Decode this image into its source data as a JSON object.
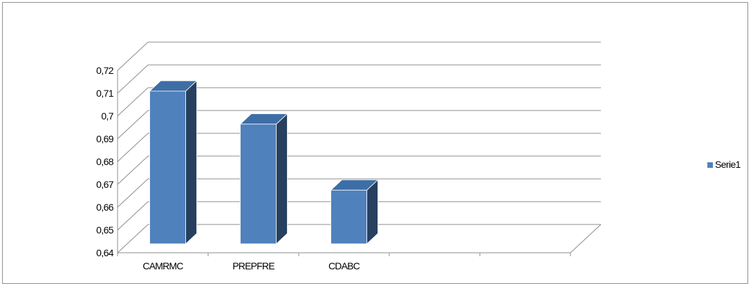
{
  "chart_data": {
    "type": "bar",
    "style": "3d-column",
    "categories": [
      "CAMRMC",
      "PREPFRE",
      "CDABC",
      "",
      ""
    ],
    "series": [
      {
        "name": "Serie1",
        "values": [
          0.714,
          0.698,
          0.666,
          null,
          null
        ]
      }
    ],
    "ylim": [
      0.64,
      0.72
    ],
    "yticks": [
      "0,64",
      "0,65",
      "0,66",
      "0,67",
      "0,68",
      "0,69",
      "0,7",
      "0,71",
      "0,72"
    ],
    "grid": true,
    "legend_position": "right",
    "title": "",
    "xlabel": "",
    "ylabel": ""
  },
  "colors": {
    "bar_front": "#4f81bd",
    "bar_top": "#3e6ea6",
    "bar_side": "#27405f",
    "grid": "#8c8c8c",
    "frame": "#8f8f8f"
  }
}
